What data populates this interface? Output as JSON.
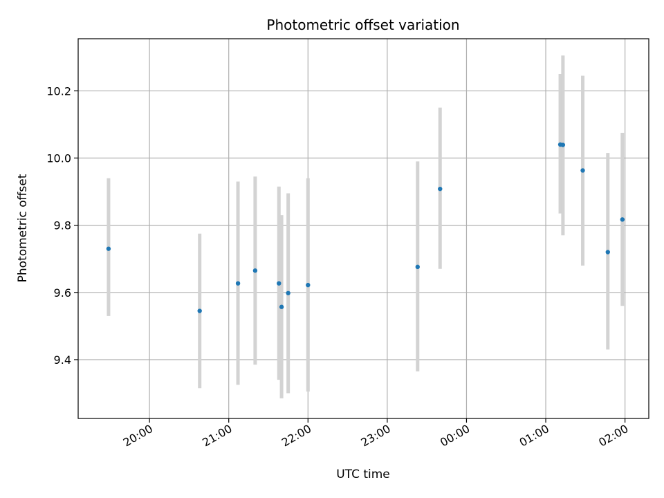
{
  "chart_data": {
    "type": "scatter",
    "title": "Photometric offset variation",
    "xlabel": "UTC time",
    "ylabel": "Photometric offset",
    "x_unit": "UTC time of day (hours, crossing midnight)",
    "xlim": [
      "19:06",
      "02:18"
    ],
    "ylim": [
      9.225,
      10.355
    ],
    "x_ticks": [
      "20:00",
      "21:00",
      "22:00",
      "23:00",
      "00:00",
      "01:00",
      "02:00"
    ],
    "y_ticks": [
      "9.4",
      "9.6",
      "9.8",
      "10.0",
      "10.2"
    ],
    "grid": true,
    "marker_color": "#1f77b4",
    "errorbar_color": "#d3d3d3",
    "points": [
      {
        "time": "19:29",
        "value": 9.73,
        "low": 9.53,
        "high": 9.94
      },
      {
        "time": "20:38",
        "value": 9.545,
        "low": 9.315,
        "high": 9.775
      },
      {
        "time": "21:07",
        "value": 9.627,
        "low": 9.325,
        "high": 9.93
      },
      {
        "time": "21:20",
        "value": 9.665,
        "low": 9.385,
        "high": 9.945
      },
      {
        "time": "21:38",
        "value": 9.627,
        "low": 9.34,
        "high": 9.915
      },
      {
        "time": "21:40",
        "value": 9.557,
        "low": 9.285,
        "high": 9.83
      },
      {
        "time": "21:45",
        "value": 9.598,
        "low": 9.3,
        "high": 9.895
      },
      {
        "time": "22:00",
        "value": 9.622,
        "low": 9.305,
        "high": 9.94
      },
      {
        "time": "23:23",
        "value": 9.676,
        "low": 9.365,
        "high": 9.99
      },
      {
        "time": "23:40",
        "value": 9.908,
        "low": 9.67,
        "high": 10.15
      },
      {
        "time": "01:11",
        "value": 10.04,
        "low": 9.835,
        "high": 10.25
      },
      {
        "time": "01:13",
        "value": 10.039,
        "low": 9.77,
        "high": 10.305
      },
      {
        "time": "01:28",
        "value": 9.963,
        "low": 9.68,
        "high": 10.245
      },
      {
        "time": "01:47",
        "value": 9.72,
        "low": 9.43,
        "high": 10.015
      },
      {
        "time": "01:58",
        "value": 9.817,
        "low": 9.56,
        "high": 10.075
      }
    ]
  }
}
